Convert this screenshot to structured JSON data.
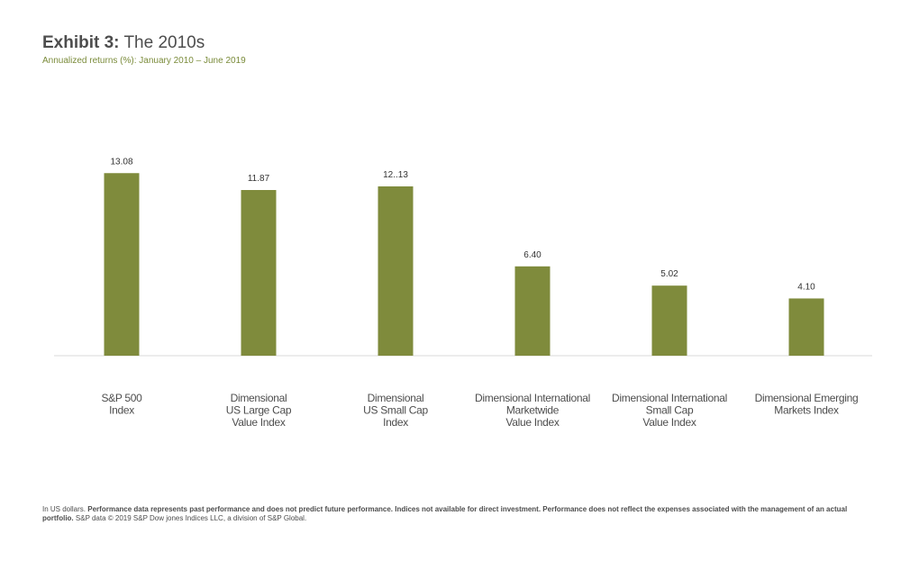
{
  "header": {
    "title_bold": "Exhibit 3:",
    "title_rest": "The 2010s",
    "subtitle": "Annualized returns (%): January 2010 – June 2019"
  },
  "colors": {
    "bar": "#7f8b3c",
    "subtitle": "#7a8b3a",
    "axis": "#d9d9d9",
    "text": "#4d4d4d"
  },
  "chart_data": {
    "type": "bar",
    "categories": [
      [
        "S&P 500",
        "Index"
      ],
      [
        "Dimensional",
        "US Large Cap",
        "Value Index"
      ],
      [
        "Dimensional",
        "US Small Cap",
        "Index"
      ],
      [
        "Dimensional International",
        "Marketwide",
        "Value Index"
      ],
      [
        "Dimensional International",
        "Small Cap",
        "Value Index"
      ],
      [
        "Dimensional Emerging",
        "Markets Index"
      ]
    ],
    "values": [
      13.08,
      11.87,
      12.13,
      6.4,
      5.02,
      4.1
    ],
    "value_labels": [
      "13.08",
      "11.87",
      "12..13",
      "6.40",
      "5.02",
      "4.10"
    ],
    "ylim": [
      0,
      16
    ],
    "grid": false
  },
  "footnote": {
    "lead": "In US dollars.",
    "bold_text": "Performance data represents past performance and does not predict future performance. Indices not available for direct investment. Performance  does not reflect the expenses associated with the management of an actual portfolio.",
    "tail": "S&P data © 2019 S&P Dow jones Indices LLC, a division of S&P Global."
  }
}
